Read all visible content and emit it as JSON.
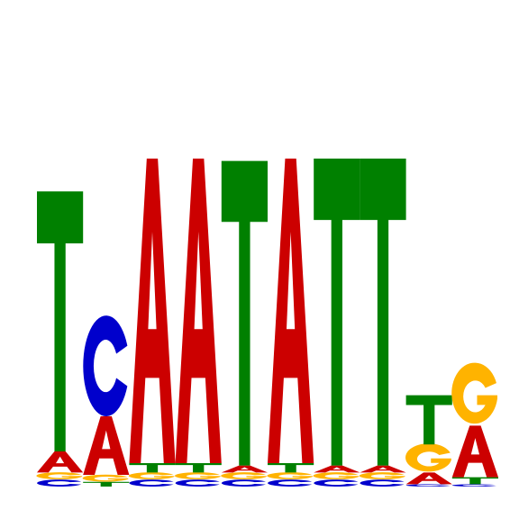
{
  "colors": {
    "A": "#cc0000",
    "C": "#0000cc",
    "G": "#ffb300",
    "T": "#008000",
    "background": "#ffffff"
  },
  "chart_data": {
    "type": "sequence-logo",
    "alphabet": [
      "A",
      "C",
      "G",
      "T"
    ],
    "ylim": [
      0,
      2
    ],
    "positions": [
      {
        "index": 1,
        "letters": [
          {
            "base": "C",
            "value": 0.03
          },
          {
            "base": "G",
            "value": 0.03
          },
          {
            "base": "A",
            "value": 0.09
          },
          {
            "base": "T",
            "value": 1.11
          }
        ]
      },
      {
        "index": 2,
        "letters": [
          {
            "base": "T",
            "value": 0.02
          },
          {
            "base": "G",
            "value": 0.03
          },
          {
            "base": "A",
            "value": 0.25
          },
          {
            "base": "C",
            "value": 0.43
          }
        ]
      },
      {
        "index": 3,
        "letters": [
          {
            "base": "C",
            "value": 0.03
          },
          {
            "base": "G",
            "value": 0.03
          },
          {
            "base": "T",
            "value": 0.04
          },
          {
            "base": "A",
            "value": 1.3
          }
        ]
      },
      {
        "index": 4,
        "letters": [
          {
            "base": "C",
            "value": 0.03
          },
          {
            "base": "G",
            "value": 0.03
          },
          {
            "base": "T",
            "value": 0.04
          },
          {
            "base": "A",
            "value": 1.3
          }
        ]
      },
      {
        "index": 5,
        "letters": [
          {
            "base": "C",
            "value": 0.03
          },
          {
            "base": "G",
            "value": 0.03
          },
          {
            "base": "A",
            "value": 0.03
          },
          {
            "base": "T",
            "value": 1.3
          }
        ]
      },
      {
        "index": 6,
        "letters": [
          {
            "base": "C",
            "value": 0.03
          },
          {
            "base": "G",
            "value": 0.03
          },
          {
            "base": "T",
            "value": 0.04
          },
          {
            "base": "A",
            "value": 1.3
          }
        ]
      },
      {
        "index": 7,
        "letters": [
          {
            "base": "C",
            "value": 0.03
          },
          {
            "base": "G",
            "value": 0.03
          },
          {
            "base": "A",
            "value": 0.03
          },
          {
            "base": "T",
            "value": 1.31
          }
        ]
      },
      {
        "index": 8,
        "letters": [
          {
            "base": "C",
            "value": 0.03
          },
          {
            "base": "G",
            "value": 0.03
          },
          {
            "base": "A",
            "value": 0.03
          },
          {
            "base": "T",
            "value": 1.31
          }
        ]
      },
      {
        "index": 9,
        "letters": [
          {
            "base": "C",
            "value": 0.01
          },
          {
            "base": "A",
            "value": 0.05
          },
          {
            "base": "G",
            "value": 0.12
          },
          {
            "base": "T",
            "value": 0.21
          }
        ]
      },
      {
        "index": 10,
        "letters": [
          {
            "base": "C",
            "value": 0.01
          },
          {
            "base": "T",
            "value": 0.03
          },
          {
            "base": "A",
            "value": 0.22
          },
          {
            "base": "G",
            "value": 0.26
          }
        ]
      }
    ]
  }
}
